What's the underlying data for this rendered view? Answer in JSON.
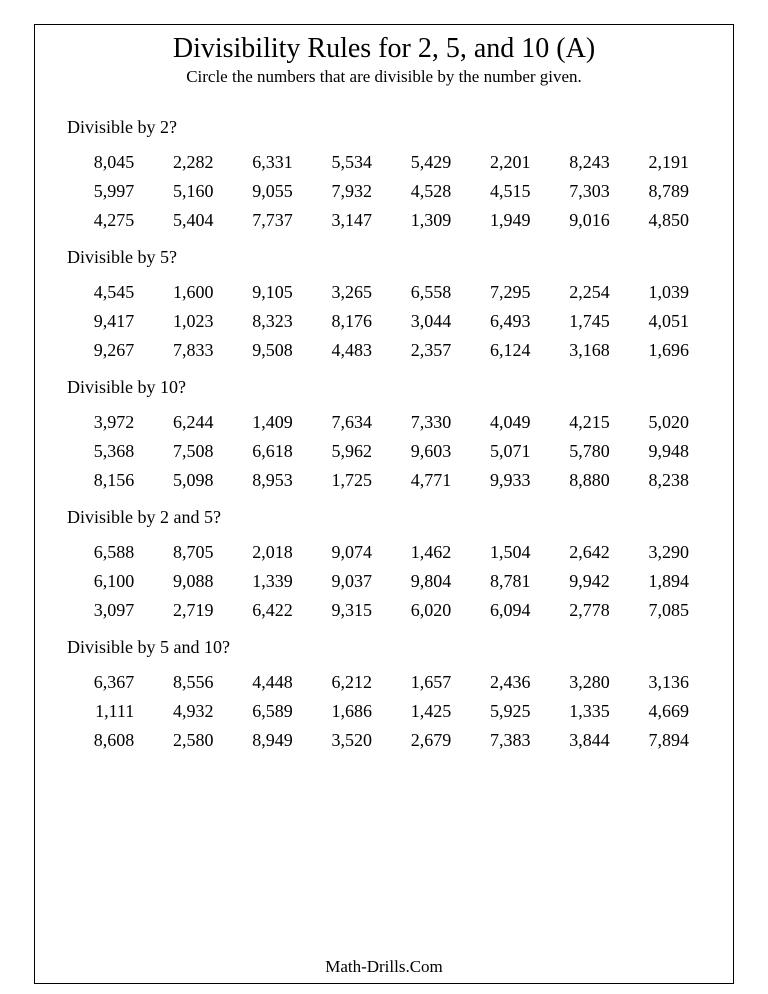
{
  "title": "Divisibility Rules for 2, 5, and 10 (A)",
  "subtitle": "Circle the numbers that are divisible by the number given.",
  "footer": "Math-Drills.Com",
  "sections": [
    {
      "label": "Divisible by 2?",
      "numbers": [
        "8,045",
        "2,282",
        "6,331",
        "5,534",
        "5,429",
        "2,201",
        "8,243",
        "2,191",
        "5,997",
        "5,160",
        "9,055",
        "7,932",
        "4,528",
        "4,515",
        "7,303",
        "8,789",
        "4,275",
        "5,404",
        "7,737",
        "3,147",
        "1,309",
        "1,949",
        "9,016",
        "4,850"
      ]
    },
    {
      "label": "Divisible by 5?",
      "numbers": [
        "4,545",
        "1,600",
        "9,105",
        "3,265",
        "6,558",
        "7,295",
        "2,254",
        "1,039",
        "9,417",
        "1,023",
        "8,323",
        "8,176",
        "3,044",
        "6,493",
        "1,745",
        "4,051",
        "9,267",
        "7,833",
        "9,508",
        "4,483",
        "2,357",
        "6,124",
        "3,168",
        "1,696"
      ]
    },
    {
      "label": "Divisible by 10?",
      "numbers": [
        "3,972",
        "6,244",
        "1,409",
        "7,634",
        "7,330",
        "4,049",
        "4,215",
        "5,020",
        "5,368",
        "7,508",
        "6,618",
        "5,962",
        "9,603",
        "5,071",
        "5,780",
        "9,948",
        "8,156",
        "5,098",
        "8,953",
        "1,725",
        "4,771",
        "9,933",
        "8,880",
        "8,238"
      ]
    },
    {
      "label": "Divisible by 2 and 5?",
      "numbers": [
        "6,588",
        "8,705",
        "2,018",
        "9,074",
        "1,462",
        "1,504",
        "2,642",
        "3,290",
        "6,100",
        "9,088",
        "1,339",
        "9,037",
        "9,804",
        "8,781",
        "9,942",
        "1,894",
        "3,097",
        "2,719",
        "6,422",
        "9,315",
        "6,020",
        "6,094",
        "2,778",
        "7,085"
      ]
    },
    {
      "label": "Divisible by 5 and 10?",
      "numbers": [
        "6,367",
        "8,556",
        "4,448",
        "6,212",
        "1,657",
        "2,436",
        "3,280",
        "3,136",
        "1,111",
        "4,932",
        "6,589",
        "1,686",
        "1,425",
        "5,925",
        "1,335",
        "4,669",
        "8,608",
        "2,580",
        "8,949",
        "3,520",
        "2,679",
        "7,383",
        "3,844",
        "7,894"
      ]
    }
  ]
}
